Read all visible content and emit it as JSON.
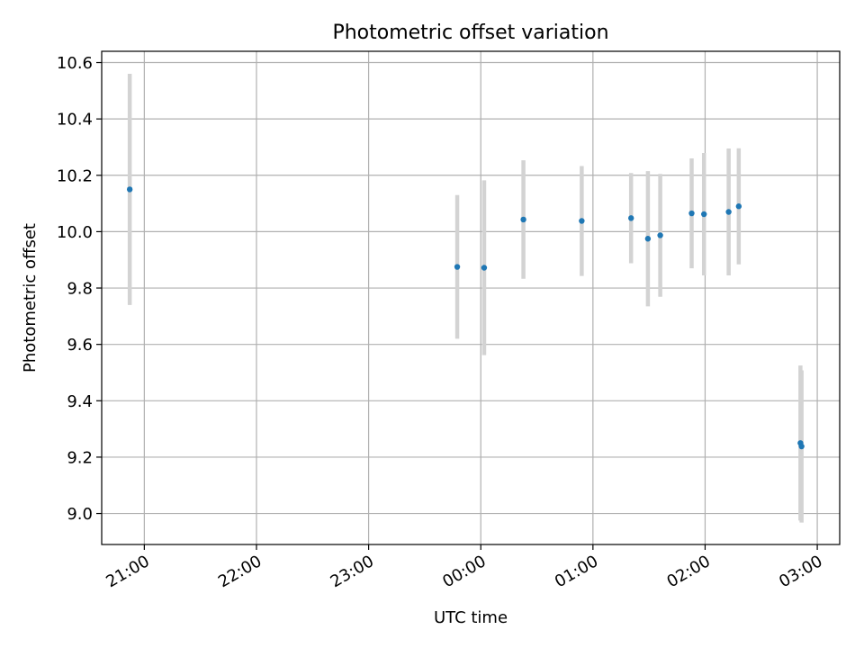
{
  "chart_data": {
    "type": "scatter",
    "title": "Photometric offset variation",
    "xlabel": "UTC time",
    "ylabel": "Photometric offset",
    "x_unit": "hours (UTC, continuing past midnight)",
    "xlim": [
      20.62,
      27.2
    ],
    "ylim": [
      8.89,
      10.64
    ],
    "grid": true,
    "xticks": [
      {
        "value": 21,
        "label": "21:00"
      },
      {
        "value": 22,
        "label": "22:00"
      },
      {
        "value": 23,
        "label": "23:00"
      },
      {
        "value": 24,
        "label": "00:00"
      },
      {
        "value": 25,
        "label": "01:00"
      },
      {
        "value": 26,
        "label": "02:00"
      },
      {
        "value": 27,
        "label": "03:00"
      }
    ],
    "yticks": [
      {
        "value": 9.0,
        "label": "9.0"
      },
      {
        "value": 9.2,
        "label": "9.2"
      },
      {
        "value": 9.4,
        "label": "9.4"
      },
      {
        "value": 9.6,
        "label": "9.6"
      },
      {
        "value": 9.8,
        "label": "9.8"
      },
      {
        "value": 10.0,
        "label": "10.0"
      },
      {
        "value": 10.2,
        "label": "10.2"
      },
      {
        "value": 10.4,
        "label": "10.4"
      },
      {
        "value": 10.6,
        "label": "10.6"
      }
    ],
    "colors": {
      "point": "#1f77b4",
      "errorbar": "#d3d3d3",
      "grid": "#b0b0b0"
    },
    "points": [
      {
        "t": 20.87,
        "y": 10.15,
        "err": 0.41
      },
      {
        "t": 23.79,
        "y": 9.875,
        "err": 0.255
      },
      {
        "t": 24.03,
        "y": 9.872,
        "err": 0.31
      },
      {
        "t": 24.38,
        "y": 10.043,
        "err": 0.21
      },
      {
        "t": 24.9,
        "y": 10.038,
        "err": 0.195
      },
      {
        "t": 25.34,
        "y": 10.048,
        "err": 0.16
      },
      {
        "t": 25.49,
        "y": 9.975,
        "err": 0.24
      },
      {
        "t": 25.6,
        "y": 9.987,
        "err": 0.218
      },
      {
        "t": 25.88,
        "y": 10.065,
        "err": 0.195
      },
      {
        "t": 25.99,
        "y": 10.062,
        "err": 0.217
      },
      {
        "t": 26.21,
        "y": 10.07,
        "err": 0.225
      },
      {
        "t": 26.3,
        "y": 10.09,
        "err": 0.206
      },
      {
        "t": 26.85,
        "y": 9.25,
        "err": 0.275
      },
      {
        "t": 26.86,
        "y": 9.238,
        "err": 0.27
      }
    ]
  }
}
